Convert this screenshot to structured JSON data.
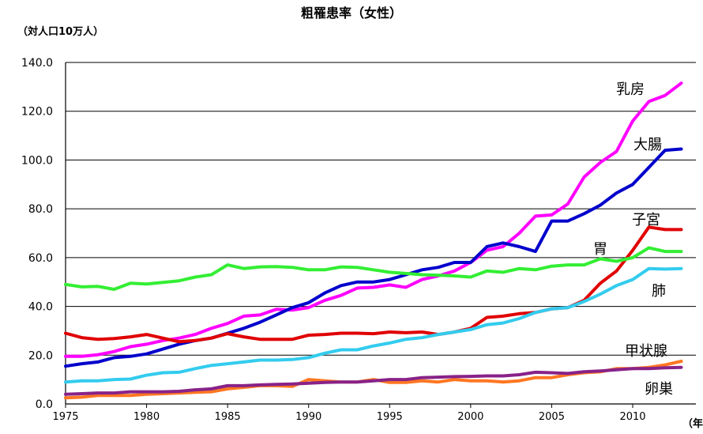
{
  "chart_data": {
    "type": "line",
    "title": "粗罹患率（女性）",
    "ylabel": "（対人口10万人）",
    "xlabel": "（年）",
    "xlim": [
      1975,
      2013
    ],
    "ylim": [
      0,
      140
    ],
    "x_ticks": [
      "1975",
      "1980",
      "1985",
      "1990",
      "1995",
      "2000",
      "2005",
      "2010"
    ],
    "y_ticks": [
      "0.0",
      "20.0",
      "40.0",
      "60.0",
      "80.0",
      "100.0",
      "120.0",
      "140.0"
    ],
    "grid": "horizontal",
    "x": [
      1975,
      1976,
      1977,
      1978,
      1979,
      1980,
      1981,
      1982,
      1983,
      1984,
      1985,
      1986,
      1987,
      1988,
      1989,
      1990,
      1991,
      1992,
      1993,
      1994,
      1995,
      1996,
      1997,
      1998,
      1999,
      2000,
      2001,
      2002,
      2003,
      2004,
      2005,
      2006,
      2007,
      2008,
      2009,
      2010,
      2011,
      2012,
      2013
    ],
    "series": [
      {
        "name": "乳房",
        "color": "#ff00ff",
        "values": [
          19.5,
          19.5,
          20.2,
          21.5,
          23.5,
          24.5,
          26.0,
          27.0,
          28.5,
          31.0,
          33.0,
          36.0,
          36.5,
          38.8,
          38.5,
          39.5,
          42.5,
          44.5,
          47.5,
          47.8,
          48.8,
          47.8,
          51.0,
          52.5,
          54.5,
          58.0,
          63.0,
          64.5,
          70.0,
          77.0,
          77.5,
          82.0,
          93.0,
          99.0,
          103.5,
          116.0,
          124.0,
          126.5,
          131.5
        ]
      },
      {
        "name": "大腸",
        "color": "#0000cc",
        "values": [
          15.5,
          16.5,
          17.2,
          19.0,
          19.5,
          20.5,
          22.5,
          24.5,
          26.0,
          27.0,
          29.0,
          31.0,
          33.5,
          36.5,
          39.5,
          41.5,
          45.5,
          48.5,
          50.0,
          50.0,
          51.0,
          53.0,
          55.0,
          56.0,
          58.0,
          58.0,
          64.5,
          66.0,
          64.5,
          62.5,
          75.0,
          75.0,
          78.0,
          81.5,
          86.5,
          90.0,
          97.0,
          104.0,
          104.5
        ]
      },
      {
        "name": "子宮",
        "color": "#e00000",
        "values": [
          29.0,
          27.2,
          26.5,
          26.8,
          27.5,
          28.5,
          27.0,
          25.5,
          26.0,
          27.0,
          28.8,
          27.5,
          26.5,
          26.5,
          26.5,
          28.2,
          28.5,
          29.0,
          29.0,
          28.8,
          29.5,
          29.2,
          29.5,
          28.5,
          29.5,
          31.0,
          35.5,
          36.0,
          37.0,
          37.5,
          39.0,
          39.5,
          42.5,
          49.5,
          54.5,
          63.0,
          72.5,
          71.5,
          71.5
        ]
      },
      {
        "name": "胃",
        "color": "#33ee33",
        "values": [
          49.0,
          48.0,
          48.2,
          47.0,
          49.5,
          49.2,
          49.8,
          50.5,
          52.0,
          53.0,
          57.0,
          55.5,
          56.2,
          56.3,
          56.0,
          55.0,
          55.0,
          56.2,
          56.0,
          55.0,
          54.0,
          53.5,
          53.0,
          52.8,
          52.5,
          52.0,
          54.5,
          54.0,
          55.5,
          55.0,
          56.5,
          57.0,
          57.0,
          59.5,
          58.5,
          60.0,
          64.0,
          62.5,
          62.5
        ]
      },
      {
        "name": "肺",
        "color": "#33ccee",
        "values": [
          9.0,
          9.5,
          9.5,
          10.0,
          10.2,
          11.8,
          12.8,
          13.0,
          14.5,
          15.8,
          16.5,
          17.2,
          18.0,
          18.0,
          18.2,
          19.0,
          20.8,
          22.2,
          22.2,
          23.8,
          25.0,
          26.5,
          27.2,
          28.5,
          29.5,
          30.5,
          32.5,
          33.2,
          35.0,
          37.5,
          39.0,
          39.5,
          42.0,
          45.0,
          48.5,
          51.0,
          55.5,
          55.3,
          55.5
        ]
      },
      {
        "name": "甲状腺",
        "color": "#ff7722",
        "values": [
          2.5,
          2.8,
          3.5,
          3.5,
          3.5,
          4.0,
          4.2,
          4.5,
          4.8,
          5.0,
          6.2,
          6.8,
          7.5,
          7.5,
          7.2,
          10.0,
          9.5,
          9.0,
          9.0,
          10.0,
          8.8,
          8.8,
          9.5,
          9.0,
          10.0,
          9.5,
          9.5,
          9.0,
          9.5,
          10.8,
          10.8,
          12.0,
          12.8,
          13.2,
          14.5,
          14.5,
          15.0,
          16.0,
          17.5
        ]
      },
      {
        "name": "卵巣",
        "color": "#882288",
        "values": [
          4.0,
          4.2,
          4.5,
          4.5,
          5.0,
          5.0,
          5.0,
          5.2,
          5.8,
          6.2,
          7.5,
          7.5,
          7.8,
          8.0,
          8.2,
          8.5,
          8.8,
          9.0,
          9.0,
          9.5,
          10.0,
          10.0,
          10.8,
          11.0,
          11.2,
          11.3,
          11.5,
          11.5,
          12.0,
          13.0,
          12.8,
          12.5,
          13.2,
          13.5,
          14.0,
          14.5,
          14.5,
          14.8,
          15.0
        ]
      }
    ]
  }
}
